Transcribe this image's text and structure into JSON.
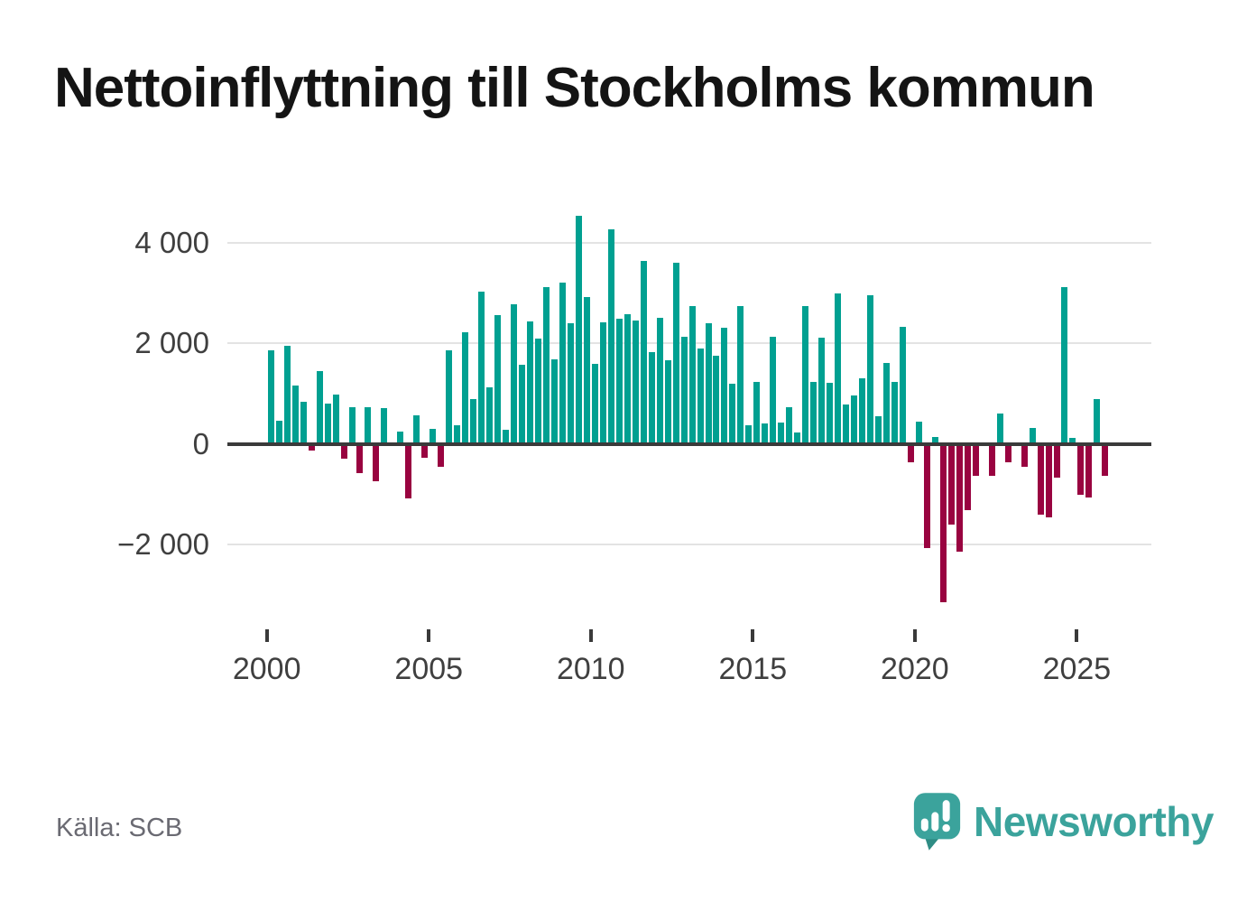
{
  "title": "Nettoinflyttning till Stockholms kommun",
  "source": "Källa: SCB",
  "logo": {
    "wordmark": "Newsworthy",
    "icon": "newsworthy-speech-bubble-chart-icon"
  },
  "colors": {
    "positive_bar": "#00a091",
    "negative_bar": "#990340",
    "grid": "#e3e3e3",
    "zero_axis": "#3a3a3a",
    "axis_text": "#3f3f3f",
    "muted_text": "#6a6a72",
    "brand_teal": "#3ba39c",
    "title_text": "#141414"
  },
  "y_axis": {
    "ticks": [
      {
        "value": 4000,
        "label": "4 000"
      },
      {
        "value": 2000,
        "label": "2 000"
      },
      {
        "value": 0,
        "label": "0"
      },
      {
        "value": -2000,
        "label": "−2 000"
      }
    ]
  },
  "x_axis": {
    "ticks": [
      "2000",
      "2005",
      "2010",
      "2015",
      "2020",
      "2025"
    ]
  },
  "chart_data": {
    "type": "bar",
    "title": "Nettoinflyttning till Stockholms kommun",
    "frequency": "quarterly",
    "start": "2000-Q1",
    "end": "2025-Q4",
    "xlabel": "",
    "ylabel": "",
    "ylim": [
      -3400,
      4700
    ],
    "y_gridlines": [
      -2000,
      0,
      2000,
      4000
    ],
    "grid": true,
    "legend": false,
    "positive_color": "#00a091",
    "negative_color": "#990340",
    "values_by_year": {
      "2000": [
        1850,
        450,
        1950,
        1150
      ],
      "2001": [
        840,
        -140,
        1450,
        800
      ],
      "2002": [
        980,
        -290,
        720,
        -580
      ],
      "2003": [
        720,
        -740,
        710,
        0
      ],
      "2004": [
        240,
        -1090,
        565,
        -285
      ],
      "2005": [
        300,
        -450,
        1850,
        360
      ],
      "2006": [
        2220,
        895,
        3015,
        1115
      ],
      "2007": [
        2565,
        280,
        2775,
        1565
      ],
      "2008": [
        2430,
        2090,
        3120,
        1670
      ],
      "2009": [
        3195,
        2390,
        4530,
        2915
      ],
      "2010": [
        1585,
        2420,
        4260,
        2480
      ],
      "2011": [
        2580,
        2450,
        3625,
        1820
      ],
      "2012": [
        2500,
        1665,
        3600,
        2120
      ],
      "2013": [
        2735,
        1895,
        2390,
        1750
      ],
      "2014": [
        2300,
        1195,
        2735,
        370
      ],
      "2015": [
        1225,
        405,
        2120,
        430
      ],
      "2016": [
        720,
        225,
        2745,
        1235
      ],
      "2017": [
        2105,
        1205,
        2995,
        775
      ],
      "2018": [
        955,
        1295,
        2955,
        555
      ],
      "2019": [
        1610,
        1235,
        2330,
        -360
      ],
      "2020": [
        435,
        -2070,
        130,
        -3150
      ],
      "2021": [
        -1600,
        -2140,
        -1320,
        -630
      ],
      "2022": [
        0,
        -630,
        600,
        -370
      ],
      "2023": [
        0,
        -460,
        310,
        -1400
      ],
      "2024": [
        -1465,
        -680,
        3120,
        120
      ],
      "2025": [
        -1020,
        -1060,
        895,
        -640
      ]
    }
  }
}
